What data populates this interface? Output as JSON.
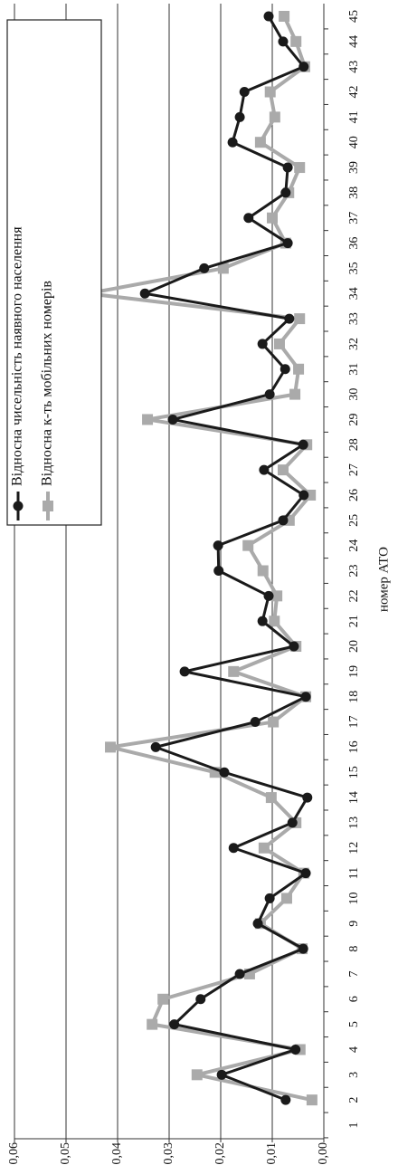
{
  "chart_data": {
    "type": "line",
    "x_label": "номер АТО",
    "categories": [
      "1",
      "2",
      "3",
      "4",
      "5",
      "6",
      "7",
      "8",
      "9",
      "10",
      "11",
      "12",
      "13",
      "14",
      "15",
      "16",
      "17",
      "18",
      "19",
      "20",
      "21",
      "22",
      "23",
      "24",
      "25",
      "26",
      "27",
      "28",
      "29",
      "30",
      "31",
      "32",
      "33",
      "34",
      "35",
      "36",
      "37",
      "38",
      "39",
      "40",
      "41",
      "42",
      "43",
      "44",
      "45"
    ],
    "series": [
      {
        "name": "Відносна чисельність наявного населення",
        "color": "#1a1a1a",
        "marker": "circle",
        "values": [
          null,
          0.0074,
          0.0198,
          0.0055,
          0.029,
          0.0239,
          0.0163,
          0.004,
          0.0128,
          0.0105,
          0.0035,
          0.0175,
          0.0061,
          0.0032,
          0.0193,
          0.0326,
          0.0133,
          0.0035,
          0.027,
          0.0058,
          0.0119,
          0.0107,
          0.0204,
          0.0205,
          0.0079,
          0.0039,
          0.0116,
          0.004,
          0.0293,
          0.0105,
          0.0075,
          0.0119,
          0.0067,
          0.0347,
          0.0232,
          0.007,
          0.0146,
          0.0074,
          0.007,
          0.0177,
          0.0163,
          0.0154,
          0.0039,
          0.0079,
          0.0107
        ]
      },
      {
        "name": "Відносна к-ть мобільних номерів",
        "color": "#aaaaaa",
        "marker": "square",
        "values": [
          null,
          0.0023,
          0.0246,
          0.0046,
          0.0333,
          0.0312,
          0.0144,
          0.0042,
          0.0123,
          0.0072,
          0.0039,
          0.0116,
          0.0054,
          0.0102,
          0.0211,
          0.0414,
          0.0098,
          0.0035,
          0.0175,
          0.0054,
          0.0096,
          0.0091,
          0.0118,
          0.0147,
          0.0067,
          0.0026,
          0.0079,
          0.0033,
          0.0342,
          0.0056,
          0.0049,
          0.0086,
          0.0047,
          0.0458,
          0.0195,
          0.0074,
          0.01,
          0.0068,
          0.0047,
          0.0123,
          0.0095,
          0.0104,
          0.0037,
          0.0054,
          0.0077
        ]
      }
    ],
    "ylim": [
      0,
      0.06
    ],
    "yticks": [
      {
        "value": 0,
        "label": "0,00"
      },
      {
        "value": 0.01,
        "label": "0,01"
      },
      {
        "value": 0.02,
        "label": "0,02"
      },
      {
        "value": 0.03,
        "label": "0,03"
      },
      {
        "value": 0.04,
        "label": "0,04"
      },
      {
        "value": 0.05,
        "label": "0,05"
      },
      {
        "value": 0.06,
        "label": "0,06"
      }
    ],
    "grid": true,
    "legend": "top-left",
    "rotated": true
  }
}
